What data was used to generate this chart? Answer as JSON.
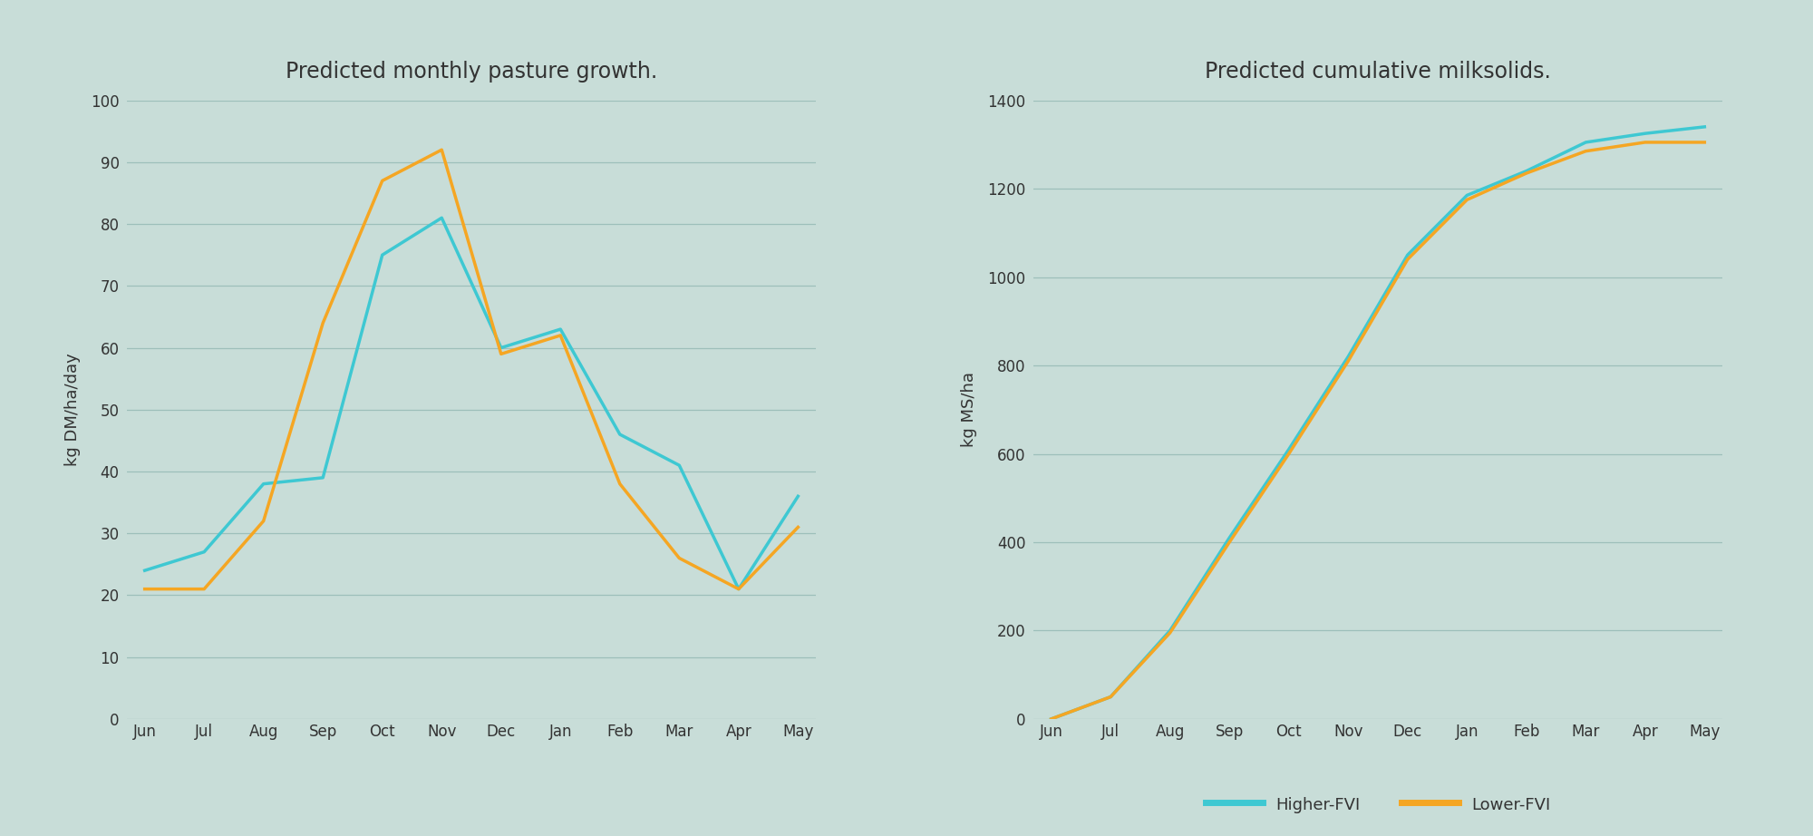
{
  "background_color": "#c8ddd8",
  "title1": "Predicted monthly pasture growth.",
  "title2": "Predicted cumulative milksolids.",
  "ylabel1": "kg DM/ha/day",
  "ylabel2": "kg MS/ha",
  "months": [
    "Jun",
    "Jul",
    "Aug",
    "Sep",
    "Oct",
    "Nov",
    "Dec",
    "Jan",
    "Feb",
    "Mar",
    "Apr",
    "May"
  ],
  "pasture_higher": [
    24,
    27,
    38,
    39,
    75,
    81,
    60,
    63,
    46,
    41,
    21,
    36
  ],
  "pasture_lower": [
    21,
    21,
    32,
    64,
    87,
    92,
    59,
    62,
    38,
    26,
    21,
    31
  ],
  "milk_higher": [
    0,
    50,
    200,
    410,
    610,
    820,
    1050,
    1185,
    1240,
    1305,
    1325,
    1340
  ],
  "milk_lower": [
    0,
    50,
    195,
    400,
    600,
    810,
    1040,
    1175,
    1235,
    1285,
    1305,
    1305
  ],
  "milk_months": [
    "Jun",
    "Jul",
    "Aug",
    "Sep",
    "Oct",
    "Nov",
    "Dec",
    "Jan",
    "Feb",
    "Mar",
    "Apr",
    "May"
  ],
  "color_higher": "#3ec8d2",
  "color_lower": "#f5a623",
  "grid_color": "#9dbfba",
  "line_width": 2.5,
  "legend_higher": "Higher-FVI",
  "legend_lower": "Lower-FVI",
  "ylim1": [
    0,
    100
  ],
  "yticks1": [
    0,
    10,
    20,
    30,
    40,
    50,
    60,
    70,
    80,
    90,
    100
  ],
  "ylim2": [
    0,
    1400
  ],
  "yticks2": [
    0,
    200,
    400,
    600,
    800,
    1000,
    1200,
    1400
  ],
  "title_fontsize": 17,
  "label_fontsize": 13,
  "tick_fontsize": 12,
  "legend_fontsize": 13,
  "text_color": "#333333"
}
